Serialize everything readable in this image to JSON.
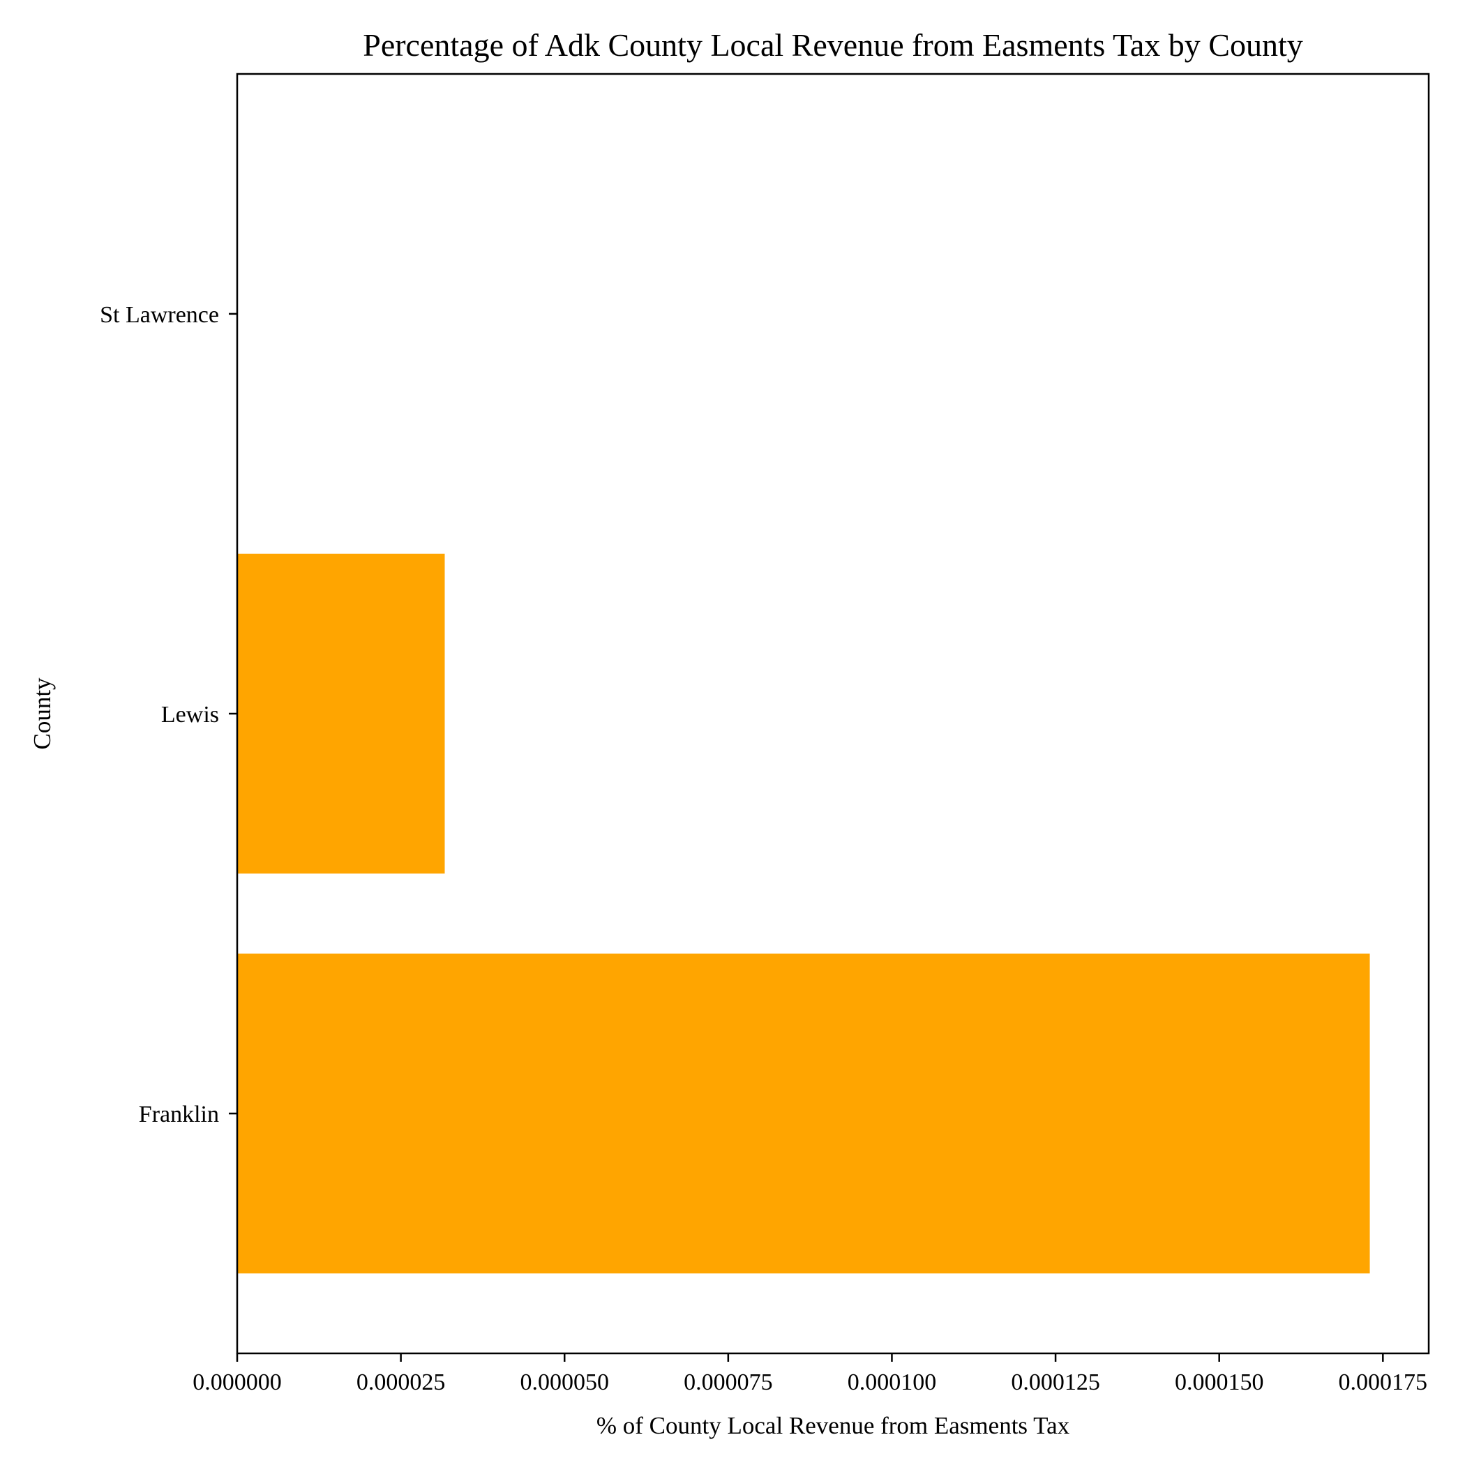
{
  "chart_data": {
    "type": "bar",
    "orientation": "horizontal",
    "title": "Percentage of Adk County Local Revenue from Easments Tax by County",
    "xlabel": "% of County Local Revenue from Easments Tax",
    "ylabel": "County",
    "categories": [
      "Franklin",
      "Lewis",
      "St Lawrence"
    ],
    "values": [
      0.000173,
      3.17e-05,
      0.0
    ],
    "xlim": [
      0,
      0.000182
    ],
    "xticks": [
      0.0,
      2.5e-05,
      5e-05,
      7.5e-05,
      0.0001,
      0.000125,
      0.00015,
      0.000175
    ],
    "xtick_labels": [
      "0.000000",
      "0.000025",
      "0.000050",
      "0.000075",
      "0.000100",
      "0.000125",
      "0.000150",
      "0.000175"
    ],
    "grid": false,
    "bar_color": "#FFA500"
  }
}
